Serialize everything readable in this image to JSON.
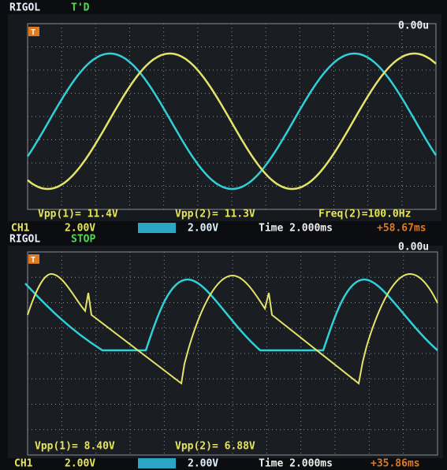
{
  "screens": [
    {
      "brand": "RIGOL",
      "status": "T'D",
      "trigger_marker": "T",
      "trigger_time": "0.00u",
      "measurements": [
        "Vpp(1)= 11.4V",
        "Vpp(2)= 11.3V",
        "Freq(2)=100.0Hz"
      ],
      "channel": "CH1",
      "ch1_scale": "2.00V",
      "ch2_scale": "2.00V",
      "timebase": "Time 2.000ms",
      "offset": "+58.67ms"
    },
    {
      "brand": "RIGOL",
      "status": "STOP",
      "trigger_marker": "T",
      "trigger_time": "0.00u",
      "measurements": [
        "Vpp(1)= 8.40V",
        "Vpp(2)= 6.88V"
      ],
      "channel": "CH1",
      "ch1_scale": "2.00V",
      "ch2_scale": "2.00V",
      "timebase": "Time 2.000ms",
      "offset": "+35.86ms"
    }
  ]
}
